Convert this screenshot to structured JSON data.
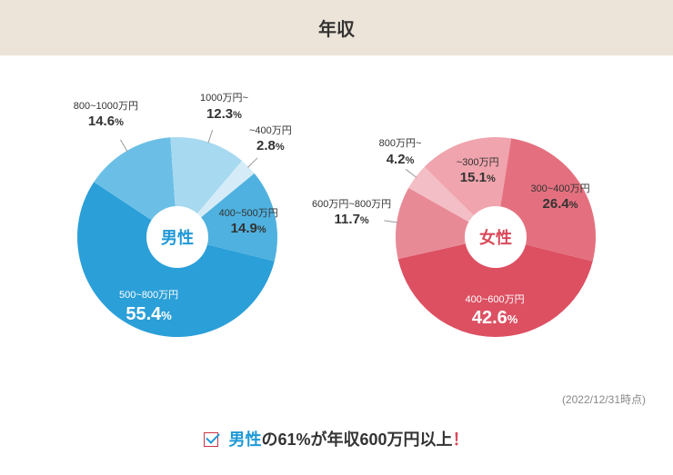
{
  "title": "年収",
  "timestamp": "(2022/12/31時点)",
  "footer": {
    "pre": "男性",
    "mid": "の61%が",
    "strong": "年収600万円以上",
    "excl": "！"
  },
  "male": {
    "label": "男性",
    "label_color": "#1f99d6",
    "outer_radius": 110,
    "inner_radius": 34,
    "slices": [
      {
        "range": "500~800万円",
        "value": 55.4,
        "color": "#2b9fd8",
        "text_color": "#ffffff"
      },
      {
        "range": "800~1000万円",
        "value": 14.6,
        "color": "#6bbfe6",
        "text_color": "#333333"
      },
      {
        "range": "1000万円~",
        "value": 12.3,
        "color": "#a7d9f0",
        "text_color": "#333333"
      },
      {
        "range": "~400万円",
        "value": 2.8,
        "color": "#d5ecf8",
        "text_color": "#333333"
      },
      {
        "range": "400~500万円",
        "value": 14.9,
        "color": "#4fb1df",
        "text_color": "#333333"
      }
    ]
  },
  "female": {
    "label": "女性",
    "label_color": "#d94a5a",
    "outer_radius": 110,
    "inner_radius": 34,
    "slices": [
      {
        "range": "400~600万円",
        "value": 42.6,
        "color": "#dc5062",
        "text_color": "#ffffff"
      },
      {
        "range": "600万円~800万円",
        "value": 11.7,
        "color": "#e88a96",
        "text_color": "#333333"
      },
      {
        "range": "800万円~",
        "value": 4.2,
        "color": "#f3bec5",
        "text_color": "#333333"
      },
      {
        "range": "~300万円",
        "value": 15.1,
        "color": "#f0a4ad",
        "text_color": "#333333"
      },
      {
        "range": "300~400万円",
        "value": 26.4,
        "color": "#e4707f",
        "text_color": "#333333"
      }
    ]
  },
  "start_angle_deg": 104
}
